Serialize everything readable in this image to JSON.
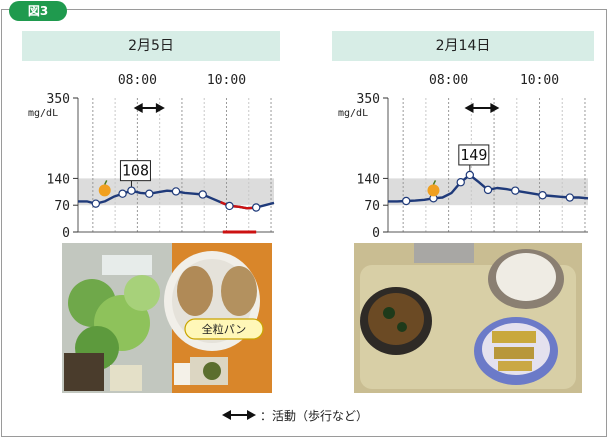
{
  "figure_badge": "図3",
  "legend_text": "：活動（歩行など）",
  "photo_label_left": "全粒パン",
  "colors": {
    "badge": "#1f9a4e",
    "header_bg": "#d7ede6",
    "curve": "#1f3a7a",
    "target_band": "#dcdcdc",
    "low_segment": "#cc1111"
  },
  "chart_data": [
    {
      "type": "line",
      "title": "2月5日",
      "ylabel": "mg/dL",
      "ylim": [
        0,
        350
      ],
      "yticks": [
        "350",
        "140",
        "70",
        "0"
      ],
      "xlabels": [
        "08:00",
        "10:00"
      ],
      "target_range": [
        70,
        140
      ],
      "x": [
        "6:40",
        "6:52",
        "7:04",
        "7:16",
        "7:28",
        "7:40",
        "7:52",
        "8:04",
        "8:16",
        "8:28",
        "8:40",
        "8:52",
        "9:04",
        "9:16",
        "9:28",
        "9:40",
        "9:52",
        "10:04",
        "10:16",
        "10:28",
        "10:40",
        "10:52",
        "11:04"
      ],
      "values": [
        80,
        80,
        74,
        80,
        92,
        100,
        108,
        102,
        100,
        104,
        108,
        106,
        102,
        100,
        98,
        88,
        78,
        68,
        66,
        62,
        64,
        70,
        76
      ],
      "activity": [
        "7:55",
        "8:37"
      ],
      "meal_icon_at": "7:16",
      "callout": "108",
      "low_period": [
        "9:55",
        "10:40"
      ]
    },
    {
      "type": "line",
      "title": "2月14日",
      "ylabel": "mg/dL",
      "ylim": [
        0,
        350
      ],
      "yticks": [
        "350",
        "140",
        "70",
        "0"
      ],
      "xlabels": [
        "08:00",
        "10:00"
      ],
      "target_range": [
        70,
        140
      ],
      "x": [
        "6:40",
        "6:52",
        "7:04",
        "7:16",
        "7:28",
        "7:40",
        "7:52",
        "8:04",
        "8:16",
        "8:28",
        "8:40",
        "8:52",
        "9:04",
        "9:16",
        "9:28",
        "9:40",
        "9:52",
        "10:04",
        "10:16",
        "10:28",
        "10:40",
        "10:52",
        "11:04"
      ],
      "values": [
        80,
        80,
        81,
        82,
        84,
        88,
        90,
        102,
        130,
        149,
        130,
        110,
        115,
        112,
        108,
        104,
        100,
        96,
        94,
        92,
        90,
        90,
        88
      ],
      "activity": [
        "8:21",
        "9:07"
      ],
      "meal_icon_at": "7:40",
      "callout": "149"
    }
  ]
}
